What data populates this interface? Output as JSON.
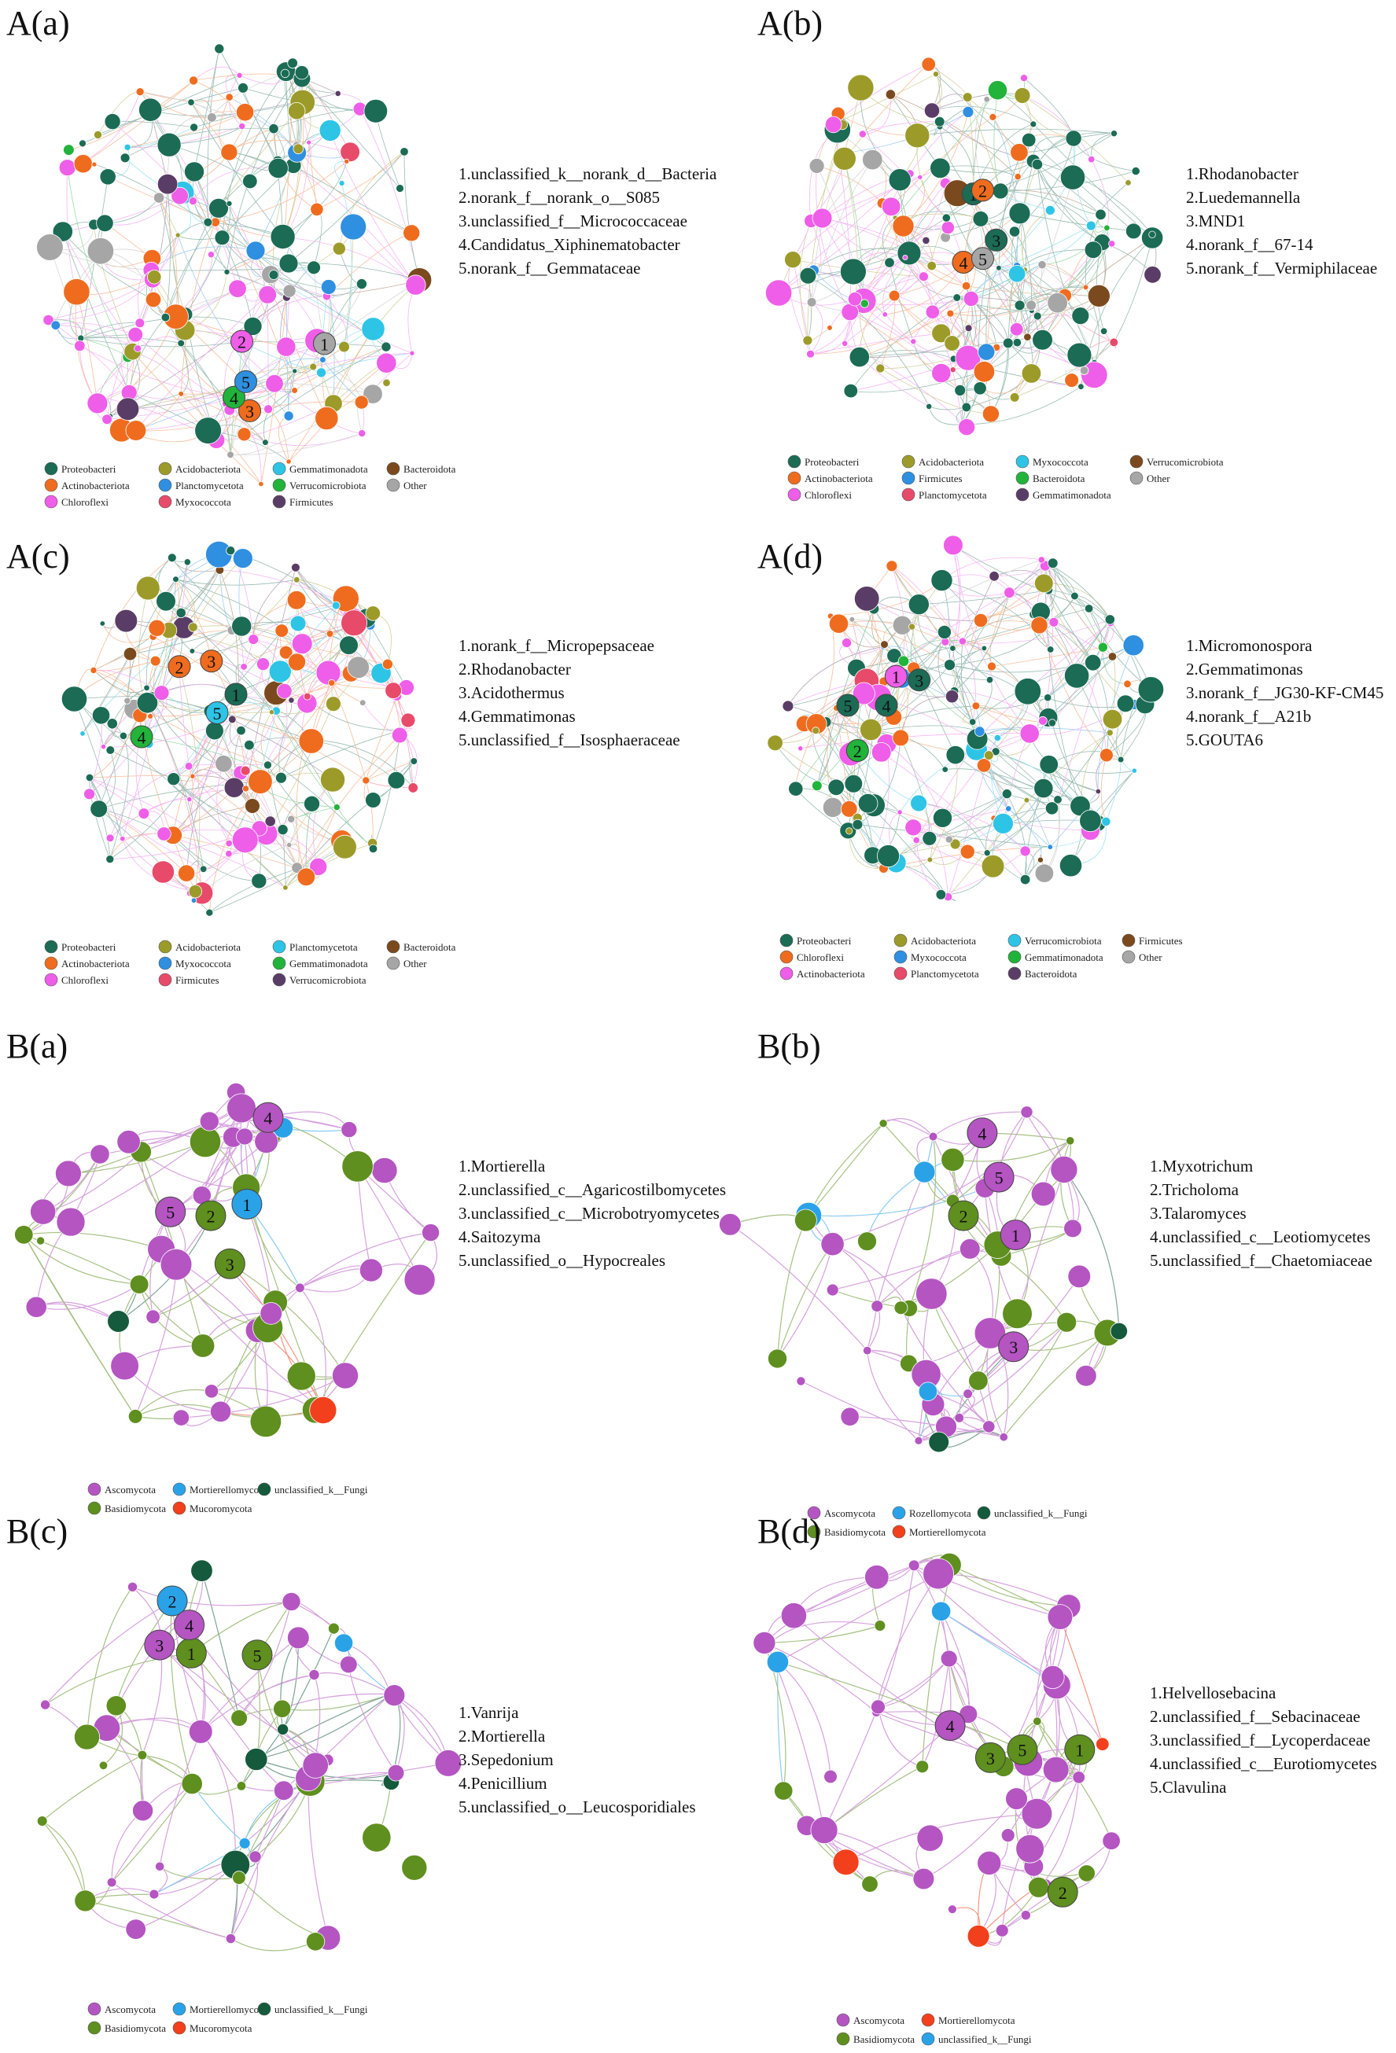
{
  "figure": {
    "panels": [
      {
        "label": "A(a)",
        "network": "bacteria",
        "key_taxa": [
          "1.unclassified_k__norank_d__Bacteria",
          "2.norank_f__norank_o__S085",
          "3.unclassified_f__Micrococcaceae",
          "4.Candidatus_Xiphinematobacter",
          "5.norank_f__Gemmataceae"
        ],
        "legend": [
          {
            "name": "Proteobacteri",
            "color": "#1b6b55"
          },
          {
            "name": "Acidobacteriota",
            "color": "#9c9b2a"
          },
          {
            "name": "Gemmatimonadota",
            "color": "#2ec4e6"
          },
          {
            "name": "Bacteroidota",
            "color": "#7a4a1e"
          },
          {
            "name": "Actinobacteriota",
            "color": "#ef6c1f"
          },
          {
            "name": "Planctomycetota",
            "color": "#2f8fe0"
          },
          {
            "name": "Verrucomicrobiota",
            "color": "#22b33a"
          },
          {
            "name": "Other",
            "color": "#a6a6a6"
          },
          {
            "name": "Chloroflexi",
            "color": "#ee5ee8"
          },
          {
            "name": "Myxococcota",
            "color": "#e84a6a"
          },
          {
            "name": "Firmicutes",
            "color": "#5a3d66"
          }
        ]
      },
      {
        "label": "A(b)",
        "network": "bacteria",
        "key_taxa": [
          "1.Rhodanobacter",
          "2.Luedemannella",
          "3.MND1",
          "4.norank_f__67-14",
          "5.norank_f__Vermiphilaceae"
        ],
        "legend": [
          {
            "name": "Proteobacteri",
            "color": "#1b6b55"
          },
          {
            "name": "Acidobacteriota",
            "color": "#9c9b2a"
          },
          {
            "name": "Myxococcota",
            "color": "#2ec4e6"
          },
          {
            "name": "Verrucomicrobiota",
            "color": "#7a4a1e"
          },
          {
            "name": "Actinobacteriota",
            "color": "#ef6c1f"
          },
          {
            "name": "Firmicutes",
            "color": "#2f8fe0"
          },
          {
            "name": "Bacteroidota",
            "color": "#22b33a"
          },
          {
            "name": "Other",
            "color": "#a6a6a6"
          },
          {
            "name": "Chloroflexi",
            "color": "#ee5ee8"
          },
          {
            "name": "Planctomycetota",
            "color": "#e84a6a"
          },
          {
            "name": "Gemmatimonadota",
            "color": "#5a3d66"
          }
        ]
      },
      {
        "label": "A(c)",
        "network": "bacteria",
        "key_taxa": [
          "1.norank_f__Micropepsaceae",
          "2.Rhodanobacter",
          "3.Acidothermus",
          "4.Gemmatimonas",
          "5.unclassified_f__Isosphaeraceae"
        ],
        "legend": [
          {
            "name": "Proteobacteri",
            "color": "#1b6b55"
          },
          {
            "name": "Acidobacteriota",
            "color": "#9c9b2a"
          },
          {
            "name": "Planctomycetota",
            "color": "#2ec4e6"
          },
          {
            "name": "Bacteroidota",
            "color": "#7a4a1e"
          },
          {
            "name": "Actinobacteriota",
            "color": "#ef6c1f"
          },
          {
            "name": "Myxococcota",
            "color": "#2f8fe0"
          },
          {
            "name": "Gemmatimonadota",
            "color": "#22b33a"
          },
          {
            "name": "Other",
            "color": "#a6a6a6"
          },
          {
            "name": "Chloroflexi",
            "color": "#ee5ee8"
          },
          {
            "name": "Firmicutes",
            "color": "#e84a6a"
          },
          {
            "name": "Verrucomicrobiota",
            "color": "#5a3d66"
          }
        ]
      },
      {
        "label": "A(d)",
        "network": "bacteria",
        "key_taxa": [
          "1.Micromonospora",
          "2.Gemmatimonas",
          "3.norank_f__JG30-KF-CM45",
          "4.norank_f__A21b",
          "5.GOUTA6"
        ],
        "legend": [
          {
            "name": "Proteobacteri",
            "color": "#1b6b55"
          },
          {
            "name": "Acidobacteriota",
            "color": "#9c9b2a"
          },
          {
            "name": "Verrucomicrobiota",
            "color": "#2ec4e6"
          },
          {
            "name": "Firmicutes",
            "color": "#7a4a1e"
          },
          {
            "name": "Chloroflexi",
            "color": "#ef6c1f"
          },
          {
            "name": "Myxococcota",
            "color": "#2f8fe0"
          },
          {
            "name": "Gemmatimonadota",
            "color": "#22b33a"
          },
          {
            "name": "Other",
            "color": "#a6a6a6"
          },
          {
            "name": "Actinobacteriota",
            "color": "#ee5ee8"
          },
          {
            "name": "Planctomycetota",
            "color": "#e84a6a"
          },
          {
            "name": "Bacteroidota",
            "color": "#5a3d66"
          }
        ]
      },
      {
        "label": "B(a)",
        "network": "fungi",
        "key_taxa": [
          "1.Mortierella",
          "2.unclassified_c__Agaricostilbomycetes",
          "3.unclassified_c__Microbotryomycetes",
          "4.Saitozyma",
          "5.unclassified_o__Hypocreales"
        ],
        "legend": [
          {
            "name": "Ascomycota",
            "color": "#b455c2"
          },
          {
            "name": "Mortierellomycota",
            "color": "#2aa2e8"
          },
          {
            "name": "unclassified_k__Fungi",
            "color": "#155a3c"
          },
          {
            "name": "Basidiomycota",
            "color": "#5f8f1f"
          },
          {
            "name": "Mucoromycota",
            "color": "#f2401c"
          }
        ]
      },
      {
        "label": "B(b)",
        "network": "fungi",
        "key_taxa": [
          "1.Myxotrichum",
          "2.Tricholoma",
          "3.Talaromyces",
          "4.unclassified_c__Leotiomycetes",
          "5.unclassified_f__Chaetomiaceae"
        ],
        "legend": [
          {
            "name": "Ascomycota",
            "color": "#b455c2"
          },
          {
            "name": "Rozellomycota",
            "color": "#2aa2e8"
          },
          {
            "name": "unclassified_k__Fungi",
            "color": "#155a3c"
          },
          {
            "name": "Basidiomycota",
            "color": "#5f8f1f"
          },
          {
            "name": "Mortierellomycota",
            "color": "#f2401c"
          }
        ]
      },
      {
        "label": "B(c)",
        "network": "fungi",
        "key_taxa": [
          "1.Vanrija",
          "2.Mortierella",
          "3.Sepedonium",
          "4.Penicillium",
          "5.unclassified_o__Leucosporidiales"
        ],
        "legend": [
          {
            "name": "Ascomycota",
            "color": "#b455c2"
          },
          {
            "name": "Mortierellomycota",
            "color": "#2aa2e8"
          },
          {
            "name": "unclassified_k__Fungi",
            "color": "#155a3c"
          },
          {
            "name": "Basidiomycota",
            "color": "#5f8f1f"
          },
          {
            "name": "Mucoromycota",
            "color": "#f2401c"
          }
        ]
      },
      {
        "label": "B(d)",
        "network": "fungi",
        "key_taxa": [
          "1.Helvellosebacina",
          "2.unclassified_f__Sebacinaceae",
          "3.unclassified_f__Lycoperdaceae",
          "4.unclassified_c__Eurotiomycetes",
          "5.Clavulina"
        ],
        "legend": [
          {
            "name": "Ascomycota",
            "color": "#b455c2"
          },
          {
            "name": "Mortierellomycota",
            "color": "#f2401c"
          },
          {
            "name": "Basidiomycota",
            "color": "#5f8f1f"
          },
          {
            "name": "unclassified_k__Fungi",
            "color": "#2aa2e8"
          }
        ]
      }
    ]
  }
}
